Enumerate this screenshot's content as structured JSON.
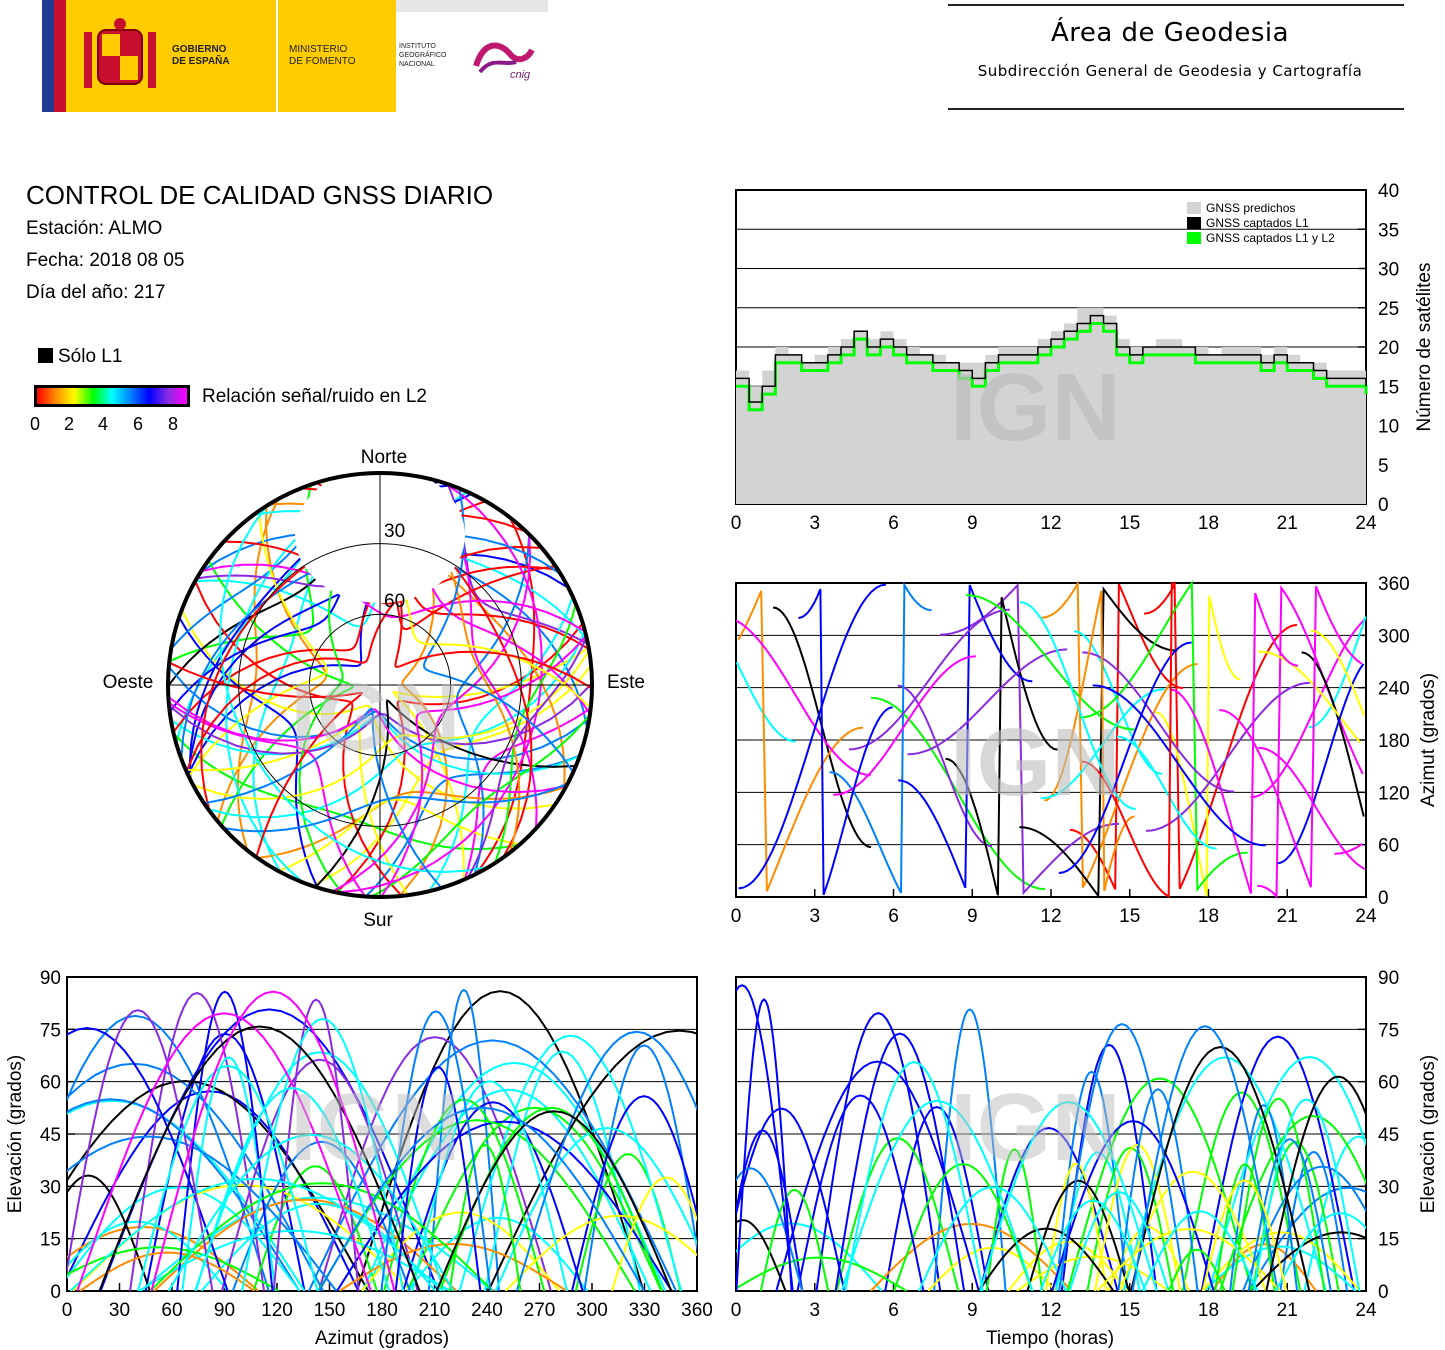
{
  "header": {
    "org_lines_1": [
      "GOBIERNO",
      "DE ESPAÑA"
    ],
    "org_lines_2": [
      "MINISTERIO",
      "DE FOMENTO"
    ],
    "org_lines_3": [
      "INSTITUTO",
      "GEOGRÁFICO",
      "NACIONAL"
    ],
    "org_logo_text": "cnig",
    "area_title": "Área de Geodesia",
    "area_subtitle": "Subdirección General de Geodesia y Cartografía"
  },
  "report": {
    "title": "CONTROL DE CALIDAD GNSS DIARIO",
    "station_line": "Estación: ALMO",
    "date_line": "Fecha: 2018 08 05",
    "doy_line": "Día del año: 217"
  },
  "legend": {
    "l1_only_label": "Sólo L1",
    "snr_label": "Relación señal/ruido en L2",
    "snr_ticks": [
      "0",
      "2",
      "4",
      "6",
      "8"
    ],
    "watermark": "IGN"
  },
  "colors": {
    "predicted": "#d3d3d3",
    "l1": "#000000",
    "l1l2": "#00ff00",
    "gradient": [
      "#ff0000",
      "#ff8c00",
      "#ffff00",
      "#00ff00",
      "#00ffff",
      "#0080ff",
      "#0000ff",
      "#8a2be2",
      "#ff00ff"
    ]
  },
  "chart_data": [
    {
      "id": "satellite-count",
      "type": "area",
      "xlabel": "",
      "ylabel": "Número de satélites",
      "xlim": [
        0,
        24
      ],
      "ylim": [
        0,
        40
      ],
      "xticks": [
        "0",
        "3",
        "6",
        "9",
        "12",
        "15",
        "18",
        "21",
        "24"
      ],
      "yticks": [
        "0",
        "5",
        "10",
        "15",
        "20",
        "25",
        "30",
        "35",
        "40"
      ],
      "legend_position": "top-right",
      "x": [
        0,
        0.5,
        1,
        1.5,
        2,
        2.5,
        3,
        3.5,
        4,
        4.5,
        5,
        5.5,
        6,
        6.5,
        7,
        7.5,
        8,
        8.5,
        9,
        9.5,
        10,
        10.5,
        11,
        11.5,
        12,
        12.5,
        13,
        13.5,
        14,
        14.5,
        15,
        15.5,
        16,
        16.5,
        17,
        17.5,
        18,
        18.5,
        19,
        19.5,
        20,
        20.5,
        21,
        21.5,
        22,
        22.5,
        23,
        23.5,
        24
      ],
      "series": [
        {
          "name": "GNSS predichos",
          "values": [
            17,
            15,
            17,
            20,
            19,
            18,
            19,
            20,
            21,
            22,
            21,
            22,
            21,
            20,
            19,
            19,
            18,
            18,
            18,
            19,
            20,
            20,
            20,
            21,
            22,
            23,
            25,
            25,
            24,
            21,
            20,
            20,
            21,
            21,
            20,
            20,
            19,
            20,
            20,
            20,
            19,
            20,
            19,
            18,
            18,
            17,
            17,
            17,
            16
          ]
        },
        {
          "name": "GNSS captados L1",
          "values": [
            16,
            13,
            15,
            19,
            19,
            18,
            18,
            19,
            20,
            22,
            20,
            21,
            20,
            19,
            19,
            18,
            18,
            17,
            16,
            18,
            19,
            19,
            19,
            20,
            21,
            22,
            23,
            24,
            23,
            20,
            19,
            20,
            20,
            20,
            20,
            19,
            19,
            19,
            19,
            19,
            18,
            19,
            18,
            18,
            17,
            16,
            16,
            16,
            15
          ]
        },
        {
          "name": "GNSS captados L1 y L2",
          "values": [
            15,
            12,
            14,
            18,
            18,
            17,
            17,
            18,
            19,
            21,
            19,
            20,
            19,
            18,
            18,
            17,
            17,
            16,
            15,
            17,
            18,
            18,
            18,
            19,
            20,
            21,
            22,
            23,
            22,
            19,
            18,
            19,
            19,
            19,
            19,
            18,
            18,
            18,
            18,
            18,
            17,
            18,
            17,
            17,
            16,
            15,
            15,
            15,
            14
          ]
        }
      ]
    },
    {
      "id": "azimuth-time",
      "type": "scatter",
      "xlabel": "",
      "ylabel": "Azimut (grados)",
      "xlim": [
        0,
        24
      ],
      "ylim": [
        0,
        360
      ],
      "xticks": [
        "0",
        "3",
        "6",
        "9",
        "12",
        "15",
        "18",
        "21",
        "24"
      ],
      "yticks": [
        "0",
        "60",
        "120",
        "180",
        "240",
        "300",
        "360"
      ]
    },
    {
      "id": "skyplot",
      "type": "scatter",
      "compass": {
        "north": "Norte",
        "south": "Sur",
        "west": "Oeste",
        "east": "Este"
      },
      "elevation_rings": [
        "30",
        "60"
      ]
    },
    {
      "id": "elevation-azimuth",
      "type": "scatter",
      "xlabel": "Azimut (grados)",
      "ylabel": "Elevación (grados)",
      "xlim": [
        0,
        360
      ],
      "ylim": [
        0,
        90
      ],
      "xticks": [
        "0",
        "30",
        "60",
        "90",
        "120",
        "150",
        "180",
        "210",
        "240",
        "270",
        "300",
        "330",
        "360"
      ],
      "yticks": [
        "0",
        "15",
        "30",
        "45",
        "60",
        "75",
        "90"
      ]
    },
    {
      "id": "elevation-time",
      "type": "scatter",
      "xlabel": "Tiempo (horas)",
      "ylabel": "Elevación (grados)",
      "xlim": [
        0,
        24
      ],
      "ylim": [
        0,
        90
      ],
      "xticks": [
        "0",
        "3",
        "6",
        "9",
        "12",
        "15",
        "18",
        "21",
        "24"
      ],
      "yticks": [
        "0",
        "15",
        "30",
        "45",
        "60",
        "75",
        "90"
      ]
    }
  ]
}
